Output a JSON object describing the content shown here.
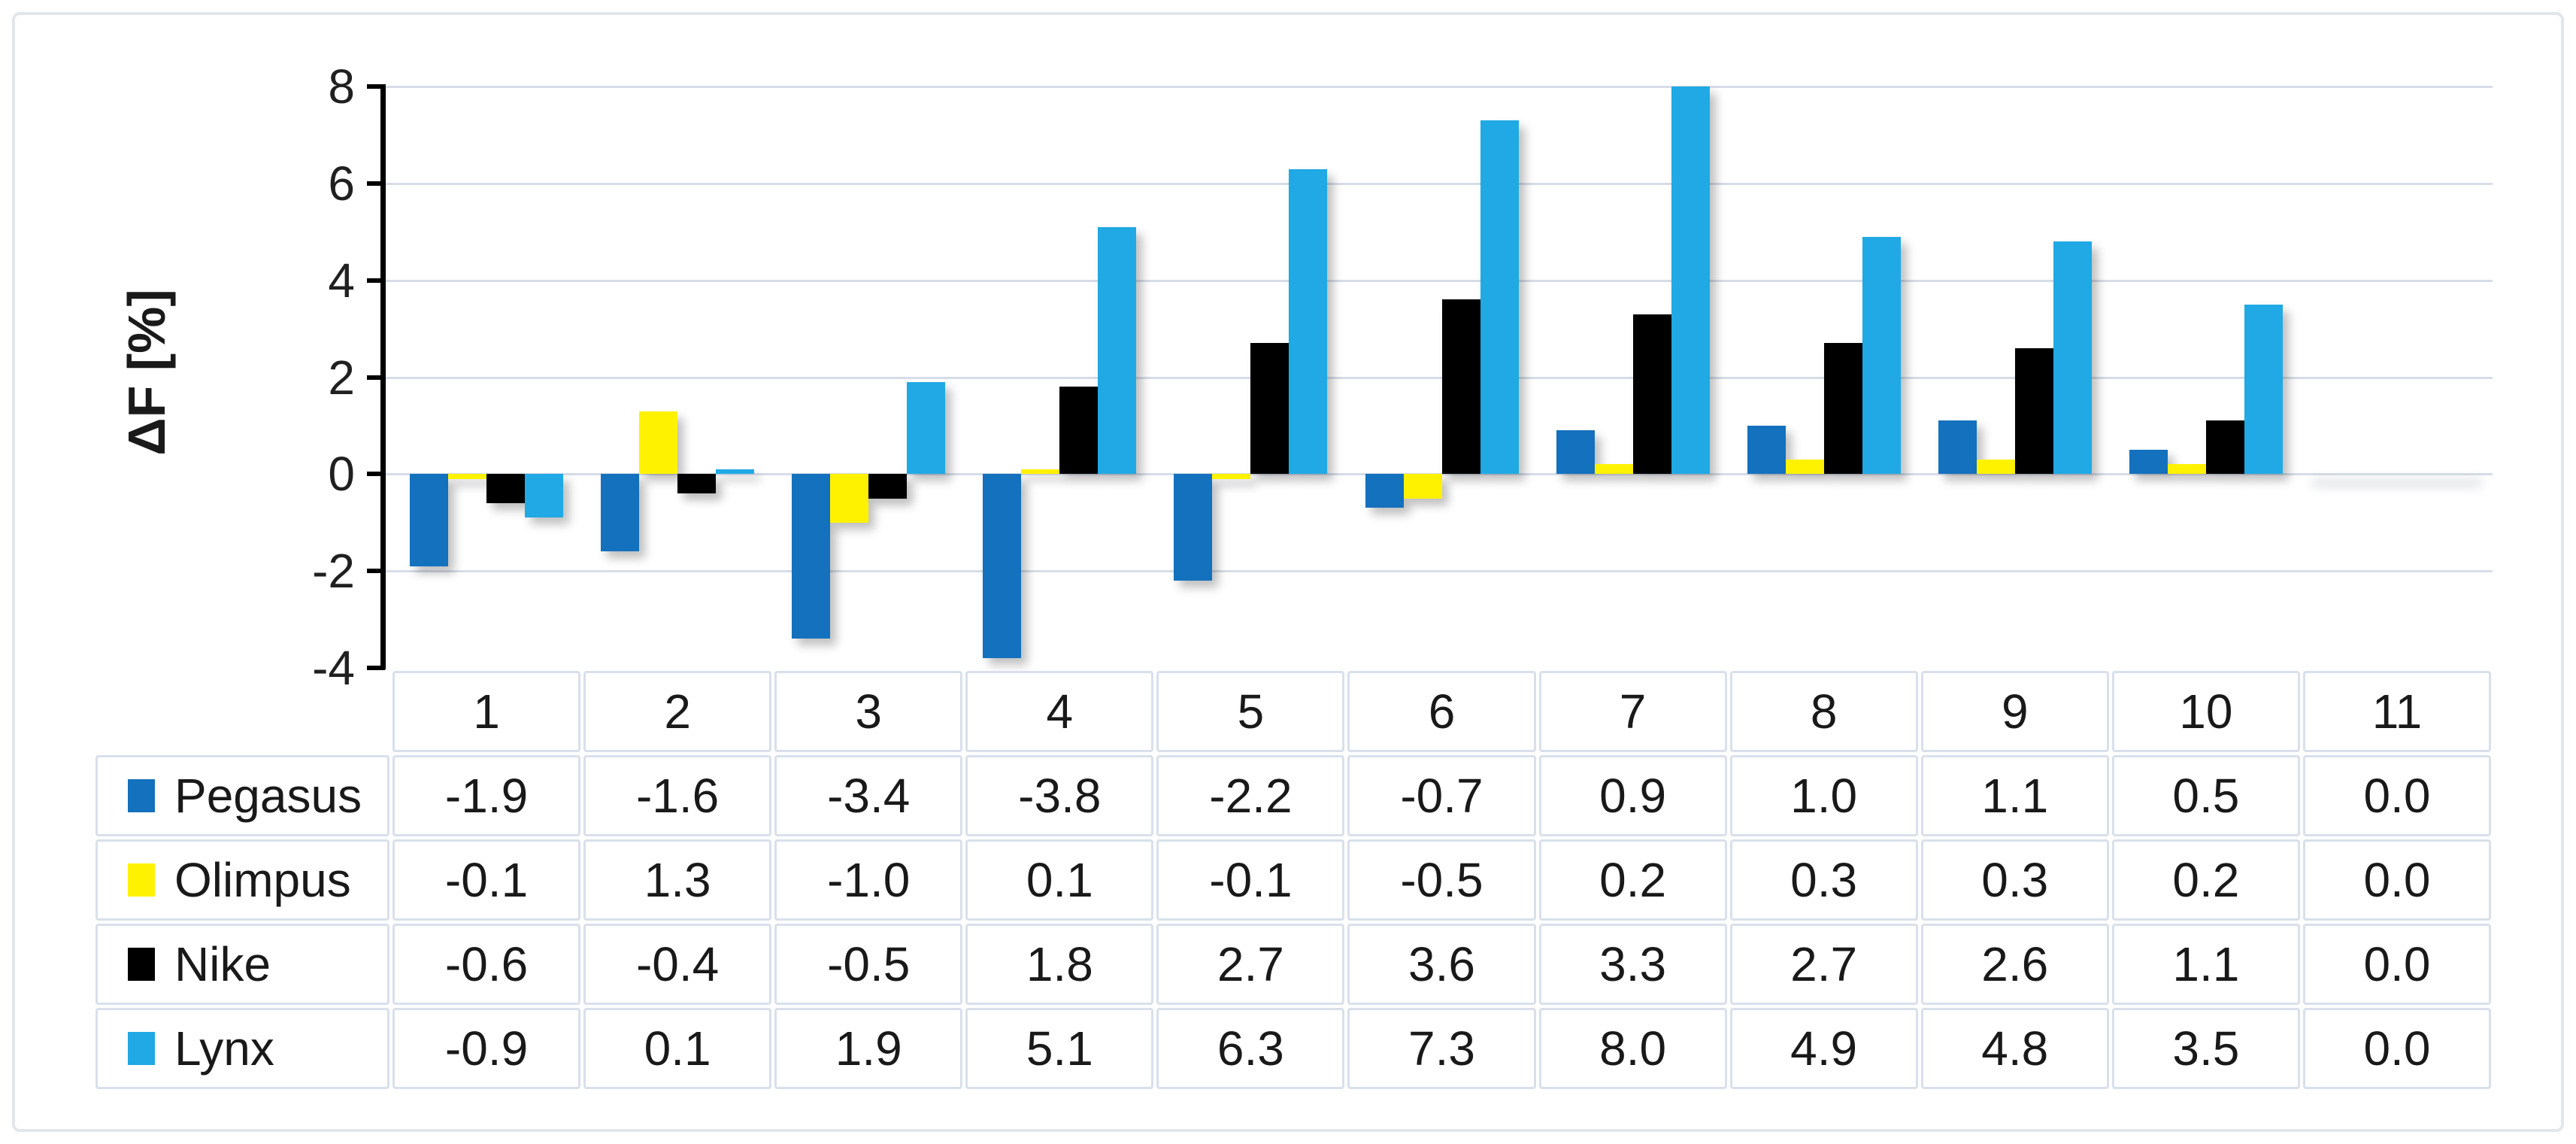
{
  "figure": {
    "background": "#ffffff",
    "frame_border_color": "#e2e6eb"
  },
  "colors": {
    "gridline": "#d7dde8",
    "table_border": "#d9e0eb",
    "axis_line": "#000000",
    "text": "#191919"
  },
  "chart_data": {
    "type": "bar",
    "title": "",
    "xlabel": "",
    "ylabel": "ΔF [%]",
    "ylim": [
      -4,
      8
    ],
    "yticks": [
      8,
      6,
      4,
      2,
      0,
      -2,
      -4
    ],
    "grid": "horizontal",
    "legend_position": "data-table-left",
    "data_table": true,
    "categories": [
      "1",
      "2",
      "3",
      "4",
      "5",
      "6",
      "7",
      "8",
      "9",
      "10",
      "11"
    ],
    "series": [
      {
        "name": "Pegasus",
        "color": "#1471bd",
        "values": [
          -1.9,
          -1.6,
          -3.4,
          -3.8,
          -2.2,
          -0.7,
          0.9,
          1.0,
          1.1,
          0.5,
          0.0
        ]
      },
      {
        "name": "Olimpus",
        "color": "#fff200",
        "values": [
          -0.1,
          1.3,
          -1.0,
          0.1,
          -0.1,
          -0.5,
          0.2,
          0.3,
          0.3,
          0.2,
          0.0
        ]
      },
      {
        "name": "Nike",
        "color": "#000000",
        "values": [
          -0.6,
          -0.4,
          -0.5,
          1.8,
          2.7,
          3.6,
          3.3,
          2.7,
          2.6,
          1.1,
          0.0
        ]
      },
      {
        "name": "Lynx",
        "color": "#20a9e4",
        "values": [
          -0.9,
          0.1,
          1.9,
          5.1,
          6.3,
          7.3,
          8.0,
          4.9,
          4.8,
          3.5,
          0.0
        ]
      }
    ],
    "value_decimals": 1
  }
}
